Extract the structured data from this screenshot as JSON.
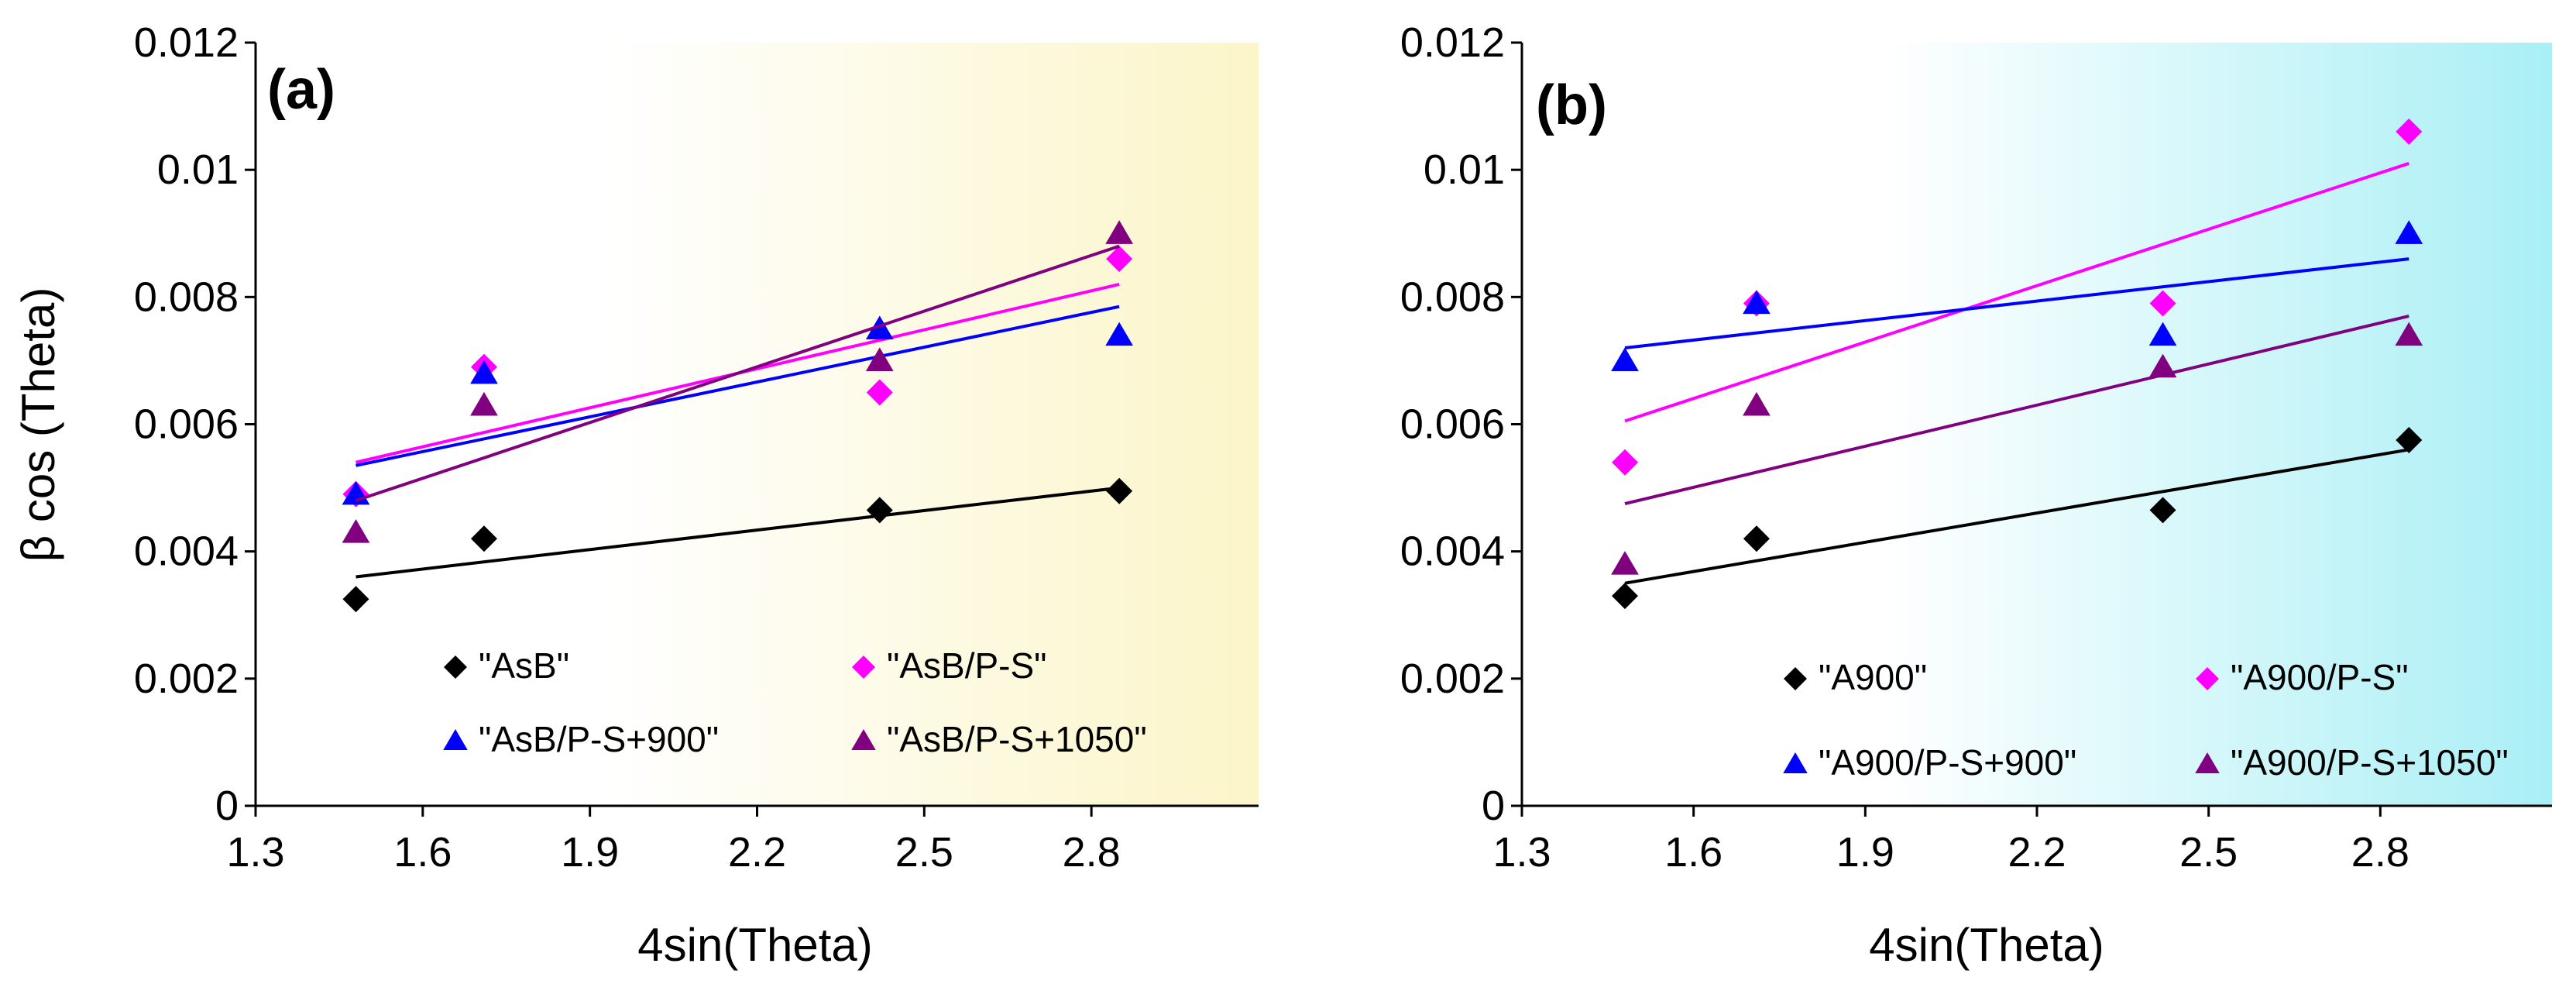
{
  "chart_data": [
    {
      "type": "scatter",
      "panel_label": "(a)",
      "xlabel": "4sin(Theta)",
      "ylabel": "β cos (Theta)",
      "xlim": [
        1.3,
        3.1
      ],
      "ylim": [
        0,
        0.012
      ],
      "x_ticks": [
        "1.3",
        "1.6",
        "1.9",
        "2.2",
        "2.5",
        "2.8"
      ],
      "x_tick_values": [
        1.3,
        1.6,
        1.9,
        2.2,
        2.5,
        2.8
      ],
      "y_ticks": [
        "0",
        "0.002",
        "0.004",
        "0.006",
        "0.008",
        "0.01",
        "0.012"
      ],
      "y_tick_values": [
        0,
        0.002,
        0.004,
        0.006,
        0.008,
        0.01,
        0.012
      ],
      "background_gradient": [
        "#ffffff",
        "#fbf5c8"
      ],
      "legend_position": "bottom",
      "series": [
        {
          "name": "\"AsB\"",
          "marker": "diamond",
          "color": "#000000",
          "x": [
            1.48,
            1.71,
            2.42,
            2.85
          ],
          "y": [
            0.00325,
            0.0042,
            0.00465,
            0.00495
          ],
          "trend": [
            [
              1.48,
              0.0036
            ],
            [
              2.85,
              0.005
            ]
          ]
        },
        {
          "name": "\"AsB/P-S\"",
          "marker": "diamond",
          "color": "#ff00ff",
          "x": [
            1.48,
            1.71,
            2.42,
            2.85
          ],
          "y": [
            0.0049,
            0.0069,
            0.0065,
            0.0086
          ],
          "trend": [
            [
              1.48,
              0.0054
            ],
            [
              2.85,
              0.0082
            ]
          ]
        },
        {
          "name": "\"AsB/P-S+900\"",
          "marker": "triangle",
          "color": "#0000ff",
          "x": [
            1.48,
            1.71,
            2.42,
            2.85
          ],
          "y": [
            0.0049,
            0.0068,
            0.0075,
            0.0074
          ],
          "trend": [
            [
              1.48,
              0.00535
            ],
            [
              2.85,
              0.00785
            ]
          ]
        },
        {
          "name": "\"AsB/P-S+1050\"",
          "marker": "triangle",
          "color": "#800080",
          "x": [
            1.48,
            1.71,
            2.42,
            2.85
          ],
          "y": [
            0.0043,
            0.0063,
            0.007,
            0.009
          ],
          "trend": [
            [
              1.48,
              0.0048
            ],
            [
              2.85,
              0.0088
            ]
          ]
        }
      ]
    },
    {
      "type": "scatter",
      "panel_label": "(b)",
      "xlabel": "4sin(Theta)",
      "ylabel": "",
      "xlim": [
        1.3,
        3.1
      ],
      "ylim": [
        0,
        0.012
      ],
      "x_ticks": [
        "1.3",
        "1.6",
        "1.9",
        "2.2",
        "2.5",
        "2.8"
      ],
      "x_tick_values": [
        1.3,
        1.6,
        1.9,
        2.2,
        2.5,
        2.8
      ],
      "y_ticks": [
        "0",
        "0.002",
        "0.004",
        "0.006",
        "0.008",
        "0.01",
        "0.012"
      ],
      "y_tick_values": [
        0,
        0.002,
        0.004,
        0.006,
        0.008,
        0.01,
        0.012
      ],
      "background_gradient": [
        "#ffffff",
        "#a9eff5"
      ],
      "legend_position": "bottom",
      "series": [
        {
          "name": "\"A900\"",
          "marker": "diamond",
          "color": "#000000",
          "x": [
            1.48,
            1.71,
            2.42,
            2.85
          ],
          "y": [
            0.0033,
            0.0042,
            0.00465,
            0.00575
          ],
          "trend": [
            [
              1.48,
              0.0035
            ],
            [
              2.85,
              0.0056
            ]
          ]
        },
        {
          "name": "\"A900/P-S\"",
          "marker": "diamond",
          "color": "#ff00ff",
          "x": [
            1.48,
            1.71,
            2.42,
            2.85
          ],
          "y": [
            0.0054,
            0.0079,
            0.0079,
            0.0106
          ],
          "trend": [
            [
              1.48,
              0.00605
            ],
            [
              2.85,
              0.0101
            ]
          ]
        },
        {
          "name": "\"A900/P-S+900\"",
          "marker": "triangle",
          "color": "#0000ff",
          "x": [
            1.48,
            1.71,
            2.42,
            2.85
          ],
          "y": [
            0.007,
            0.0079,
            0.0074,
            0.009
          ],
          "trend": [
            [
              1.48,
              0.0072
            ],
            [
              2.85,
              0.0086
            ]
          ]
        },
        {
          "name": "\"A900/P-S+1050\"",
          "marker": "triangle",
          "color": "#800080",
          "x": [
            1.48,
            1.71,
            2.42,
            2.85
          ],
          "y": [
            0.0038,
            0.0063,
            0.0069,
            0.0074
          ],
          "trend": [
            [
              1.48,
              0.00475
            ],
            [
              2.85,
              0.0077
            ]
          ]
        }
      ]
    }
  ]
}
